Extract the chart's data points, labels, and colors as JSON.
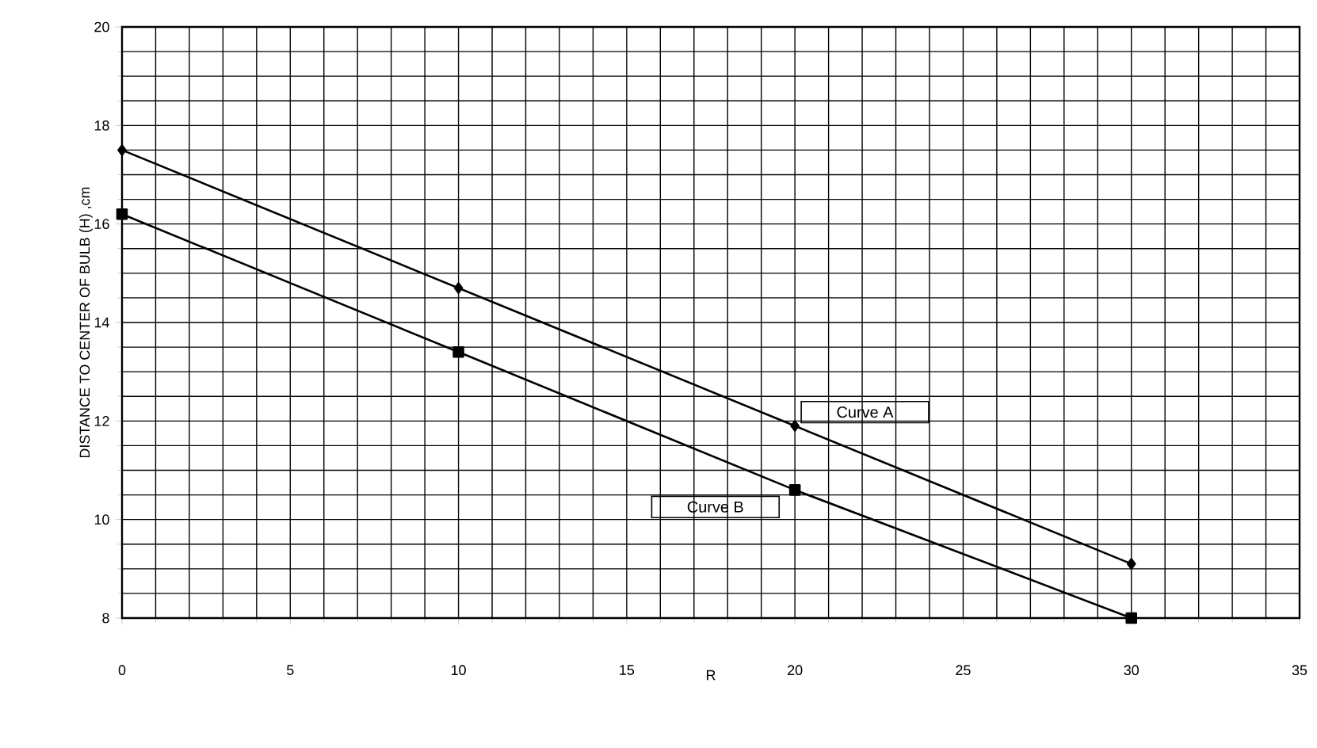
{
  "chart_data": {
    "type": "line",
    "xlabel": "R",
    "ylabel": "DISTANCE TO CENTER OF BULB (H) ,cm",
    "x": [
      0,
      10,
      20,
      30
    ],
    "series": [
      {
        "name": "Curve A",
        "color": "#000000",
        "marker": "diamond",
        "values": [
          17.5,
          14.7,
          11.9,
          9.1
        ]
      },
      {
        "name": "Curve B",
        "color": "#000000",
        "marker": "square",
        "values": [
          16.2,
          13.4,
          10.6,
          8.0
        ]
      }
    ],
    "xlim": [
      0,
      35
    ],
    "ylim": [
      8,
      20
    ],
    "xticks": [
      0,
      5,
      10,
      15,
      20,
      25,
      30,
      35
    ],
    "yticks": [
      8,
      10,
      12,
      14,
      16,
      18,
      20
    ],
    "grid": true,
    "legend": false,
    "line_style": "solid"
  }
}
